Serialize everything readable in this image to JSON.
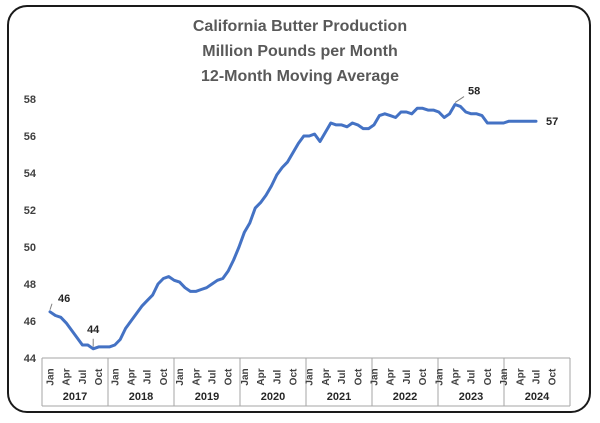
{
  "chart_data": {
    "type": "line",
    "title_lines": [
      "California Butter Production",
      "Million Pounds per Month",
      "12-Month Moving Average"
    ],
    "xlabel": "",
    "ylabel": "",
    "ylim": [
      44,
      58
    ],
    "yticks": [
      44,
      46,
      48,
      50,
      52,
      54,
      56,
      58
    ],
    "grid": false,
    "legend": "none",
    "month_labels": [
      "Jan",
      "Apr",
      "Jul",
      "Oct"
    ],
    "years": [
      "2017",
      "2018",
      "2019",
      "2020",
      "2021",
      "2022",
      "2023",
      "2024"
    ],
    "series": [
      {
        "color": "#4472c4",
        "x": [
          "2017-01",
          "2017-02",
          "2017-03",
          "2017-04",
          "2017-05",
          "2017-06",
          "2017-07",
          "2017-08",
          "2017-09",
          "2017-10",
          "2017-11",
          "2017-12",
          "2018-01",
          "2018-02",
          "2018-03",
          "2018-04",
          "2018-05",
          "2018-06",
          "2018-07",
          "2018-08",
          "2018-09",
          "2018-10",
          "2018-11",
          "2018-12",
          "2019-01",
          "2019-02",
          "2019-03",
          "2019-04",
          "2019-05",
          "2019-06",
          "2019-07",
          "2019-08",
          "2019-09",
          "2019-10",
          "2019-11",
          "2019-12",
          "2020-01",
          "2020-02",
          "2020-03",
          "2020-04",
          "2020-05",
          "2020-06",
          "2020-07",
          "2020-08",
          "2020-09",
          "2020-10",
          "2020-11",
          "2020-12",
          "2021-01",
          "2021-02",
          "2021-03",
          "2021-04",
          "2021-05",
          "2021-06",
          "2021-07",
          "2021-08",
          "2021-09",
          "2021-10",
          "2021-11",
          "2021-12",
          "2022-01",
          "2022-02",
          "2022-03",
          "2022-04",
          "2022-05",
          "2022-06",
          "2022-07",
          "2022-08",
          "2022-09",
          "2022-10",
          "2022-11",
          "2022-12",
          "2023-01",
          "2023-02",
          "2023-03",
          "2023-04",
          "2023-05",
          "2023-06",
          "2023-07",
          "2023-08",
          "2023-09",
          "2023-10",
          "2023-11",
          "2023-12",
          "2024-01",
          "2024-02",
          "2024-03",
          "2024-04",
          "2024-05",
          "2024-06",
          "2024-07"
        ],
        "values": [
          46.5,
          46.3,
          46.2,
          45.9,
          45.5,
          45.1,
          44.7,
          44.7,
          44.5,
          44.6,
          44.6,
          44.6,
          44.7,
          45.0,
          45.6,
          46.0,
          46.4,
          46.8,
          47.1,
          47.4,
          48.0,
          48.3,
          48.4,
          48.2,
          48.1,
          47.8,
          47.6,
          47.6,
          47.7,
          47.8,
          48.0,
          48.2,
          48.3,
          48.7,
          49.3,
          50.0,
          50.8,
          51.3,
          52.1,
          52.4,
          52.8,
          53.3,
          53.9,
          54.3,
          54.6,
          55.1,
          55.6,
          56.0,
          56.0,
          56.1,
          55.7,
          56.2,
          56.7,
          56.6,
          56.6,
          56.5,
          56.7,
          56.6,
          56.4,
          56.4,
          56.6,
          57.1,
          57.2,
          57.1,
          57.0,
          57.3,
          57.3,
          57.2,
          57.5,
          57.5,
          57.4,
          57.4,
          57.3,
          57.0,
          57.2,
          57.7,
          57.6,
          57.3,
          57.2,
          57.2,
          57.1,
          56.7,
          56.7,
          56.7,
          56.7,
          56.8,
          56.8,
          56.8,
          56.8,
          56.8,
          56.8
        ]
      }
    ],
    "annotations": [
      {
        "label": "46",
        "x": "2017-01",
        "y": 46.5
      },
      {
        "label": "44",
        "x": "2017-09",
        "y": 44.5
      },
      {
        "label": "58",
        "x": "2023-04",
        "y": 57.7
      },
      {
        "label": "57",
        "x": "2024-07",
        "y": 56.8
      }
    ]
  }
}
